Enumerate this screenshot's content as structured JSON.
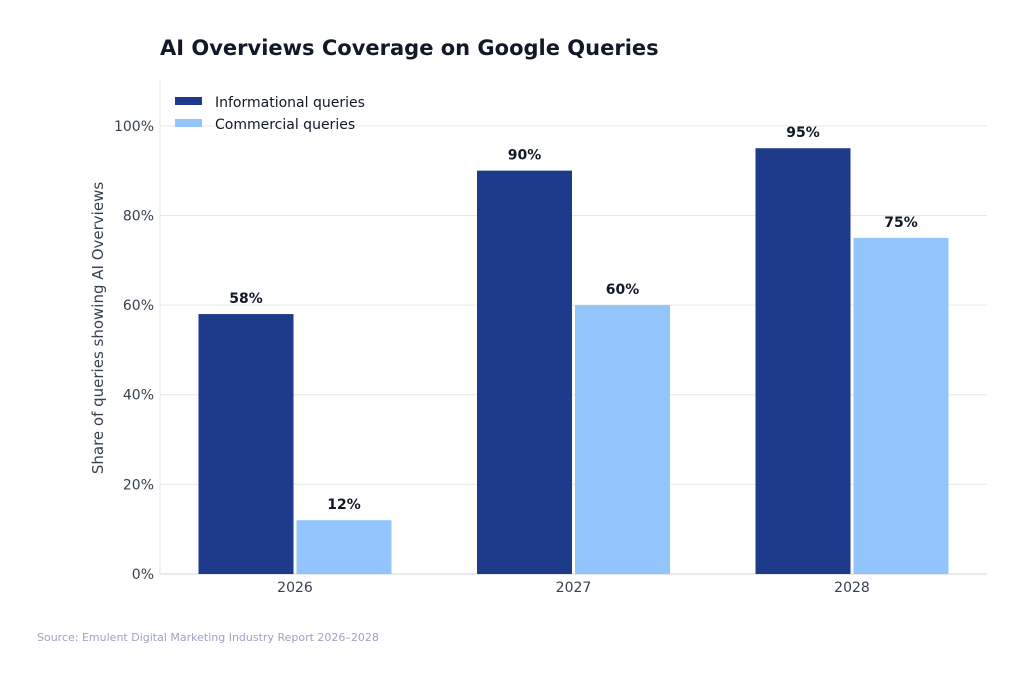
{
  "chart_data": {
    "type": "bar",
    "title": "AI Overviews Coverage on Google Queries",
    "xlabel": "",
    "ylabel": "Share of queries showing AI Overviews",
    "categories": [
      "2026",
      "2027",
      "2028"
    ],
    "series": [
      {
        "name": "Informational queries",
        "values": [
          58,
          90,
          95
        ],
        "color": "#1e3a8a"
      },
      {
        "name": "Commercial queries",
        "values": [
          12,
          60,
          75
        ],
        "color": "#93c5fd"
      }
    ],
    "data_labels": [
      [
        "58%",
        "90%",
        "95%"
      ],
      [
        "12%",
        "60%",
        "75%"
      ]
    ],
    "ylim": [
      0,
      110
    ],
    "yticks": [
      0,
      20,
      40,
      60,
      80,
      100
    ],
    "ytick_labels": [
      "0%",
      "20%",
      "40%",
      "60%",
      "80%",
      "100%"
    ],
    "grid": "horizontal",
    "legend_position": "top-left",
    "source": "Source: Emulent Digital Marketing Industry Report 2026–2028"
  }
}
